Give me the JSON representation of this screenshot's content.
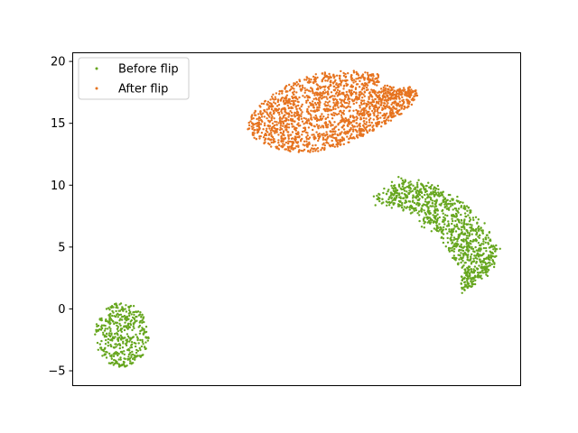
{
  "chart_data": {
    "type": "scatter",
    "title": "",
    "xlabel": "",
    "ylabel": "",
    "ylim": [
      -6.2,
      20.7
    ],
    "yticks": [
      -5,
      0,
      5,
      10,
      15,
      20
    ],
    "xticks_visible": false,
    "legend": {
      "placement": "top-left",
      "entries": [
        {
          "label": "Before flip",
          "color": "#66a61e"
        },
        {
          "label": "After flip",
          "color": "#e6731f"
        }
      ]
    },
    "series": [
      {
        "name": "Before flip",
        "color": "#66a61e",
        "clusters": [
          {
            "cx": 0.11,
            "cy": -2.1,
            "rx": 0.06,
            "ry": 2.6,
            "n": 420,
            "shape": "ellipse"
          },
          {
            "cx": 0.83,
            "cy": 6.0,
            "rx": 0.2,
            "ry": 4.2,
            "n": 1050,
            "shape": "band",
            "path": [
              [
                0.7,
                9.6
              ],
              [
                0.78,
                8.9
              ],
              [
                0.84,
                7.5
              ],
              [
                0.88,
                5.8
              ],
              [
                0.91,
                4.0
              ],
              [
                0.9,
                2.2
              ]
            ],
            "width": 1.6
          }
        ]
      },
      {
        "name": "After flip",
        "color": "#e6731f",
        "clusters": [
          {
            "cx": 0.58,
            "cy": 16.1,
            "rx": 0.38,
            "ry": 3.2,
            "n": 1800,
            "shape": "blob"
          }
        ]
      }
    ]
  }
}
